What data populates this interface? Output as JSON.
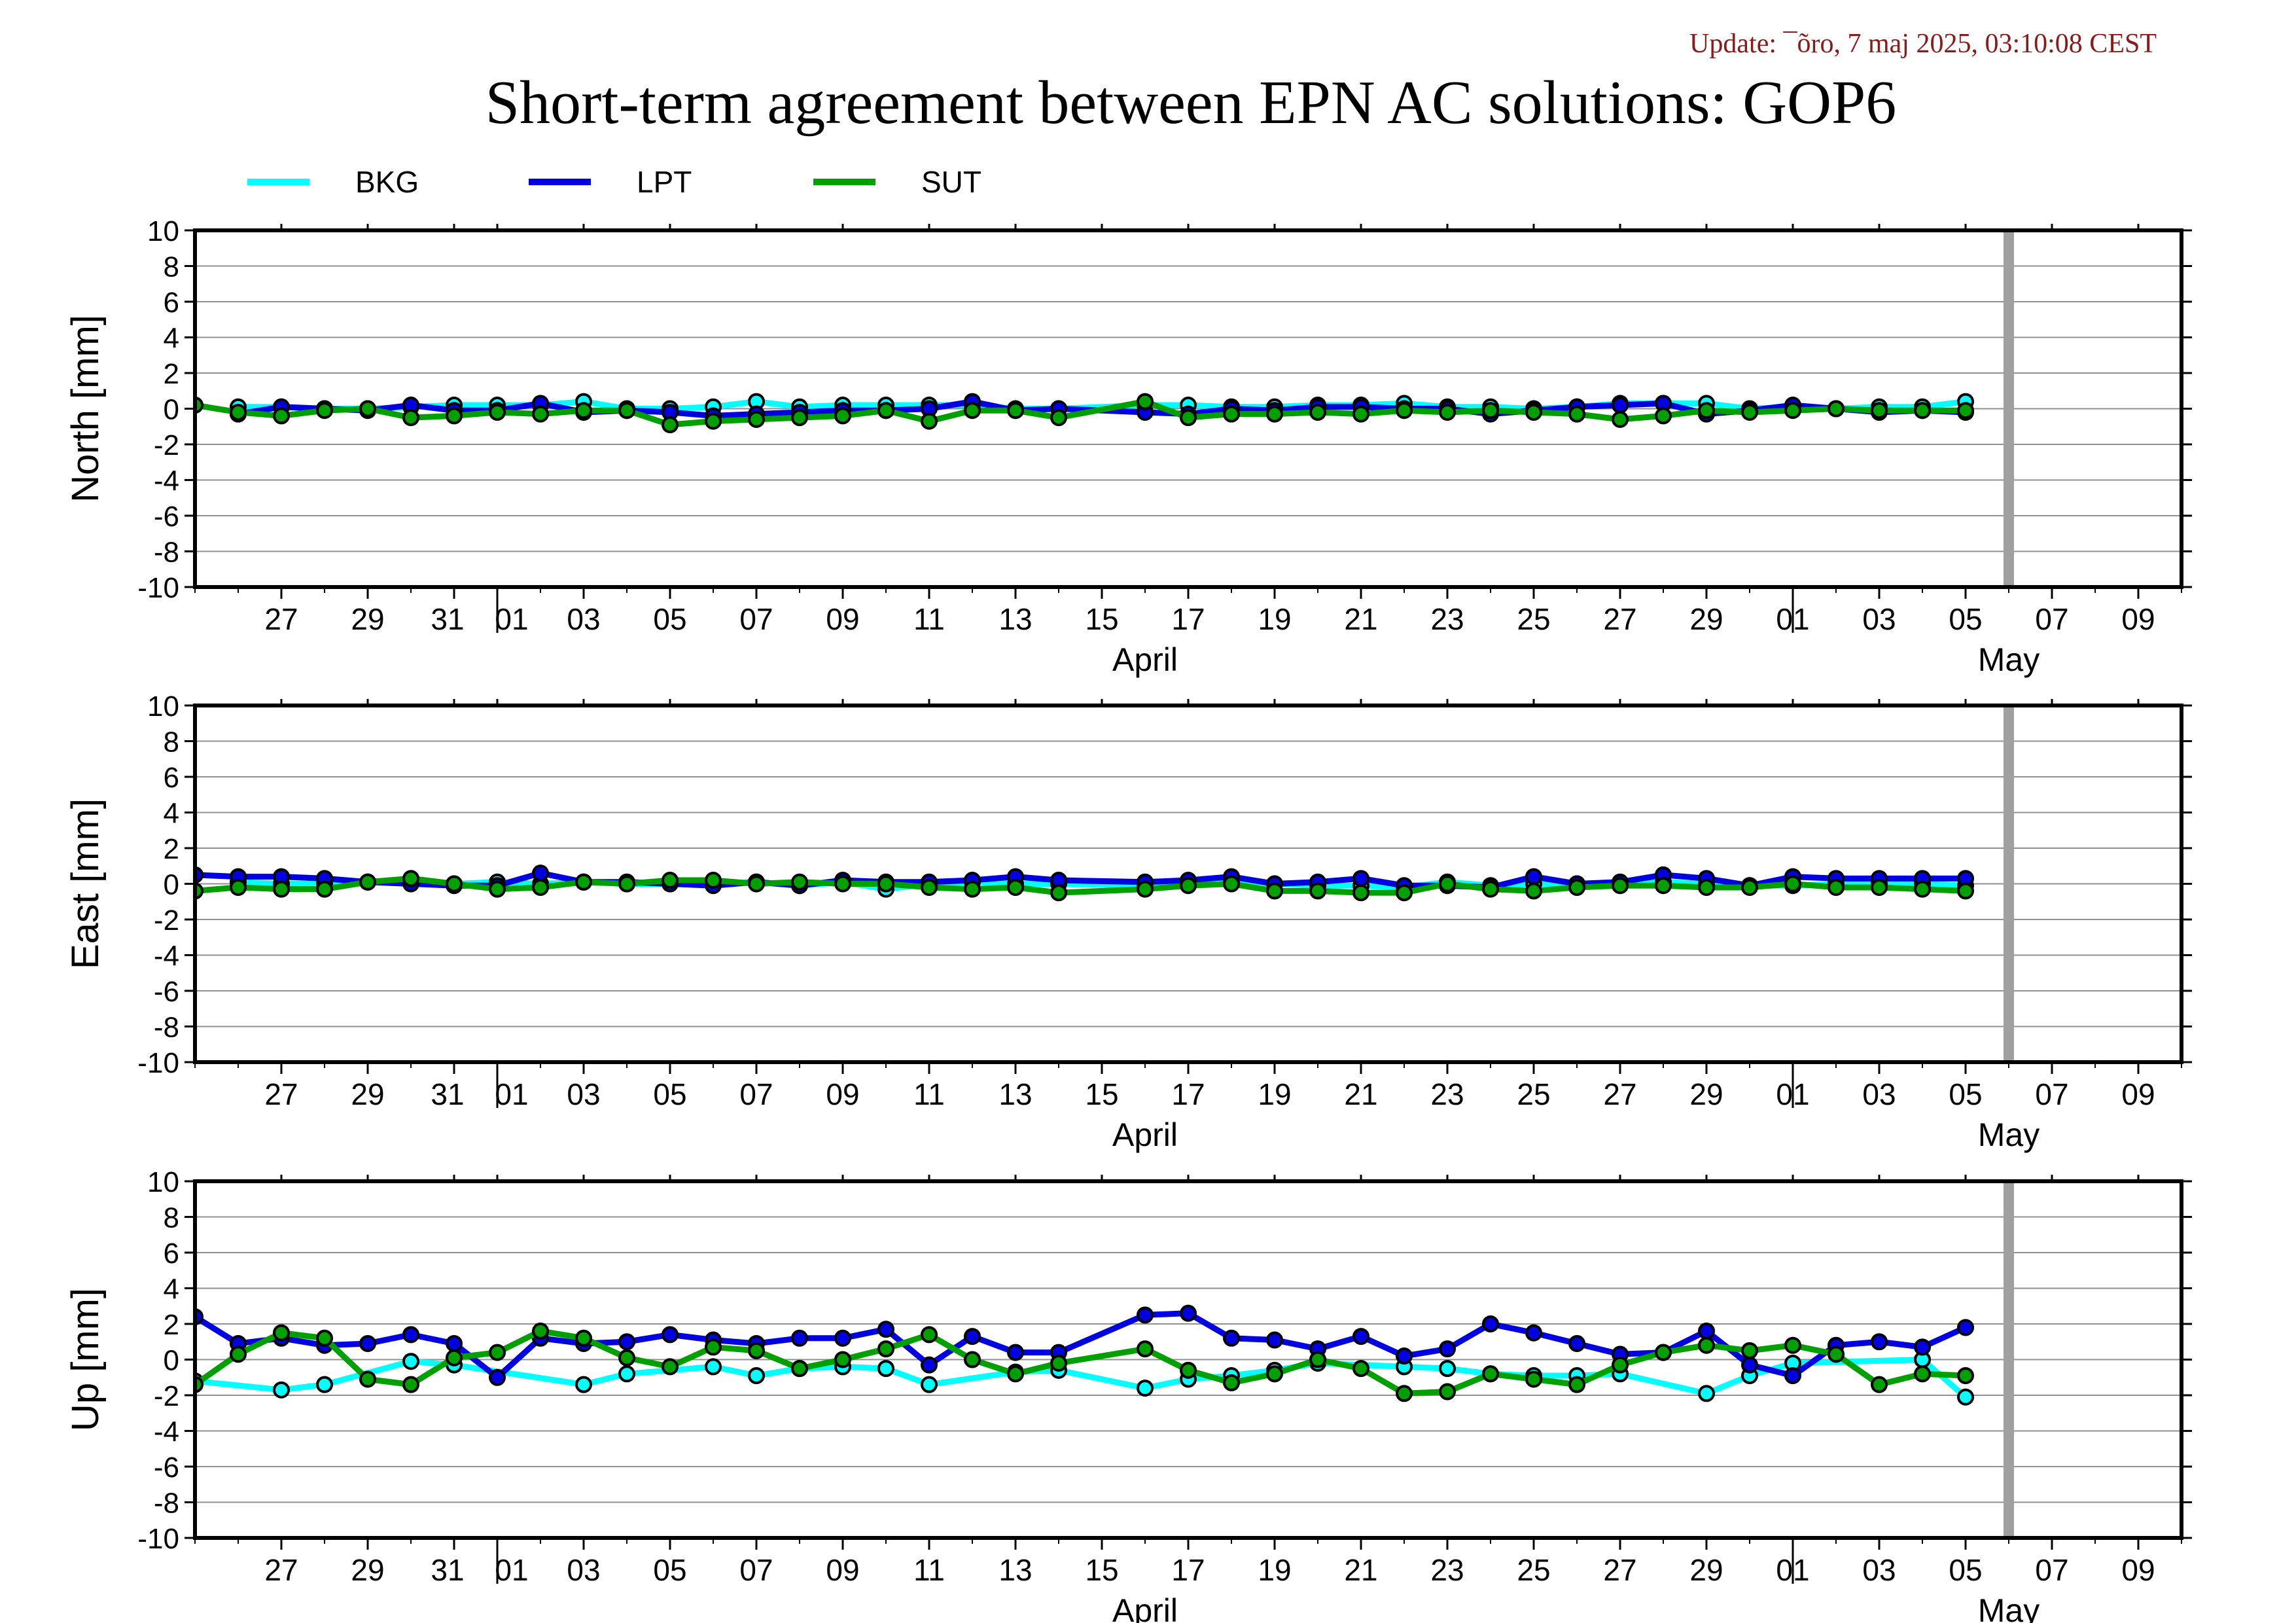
{
  "update_text": "Update: ¯õro, 7 maj 2025, 03:10:08 CEST",
  "title": "Short-term agreement between EPN AC solutions: GOP6",
  "colors": {
    "BKG": "#00ffff",
    "LPT": "#0000e0",
    "SUT": "#00a000",
    "update": "#8b1a1a",
    "end_marker": "#a0a0a0"
  },
  "chart_data": {
    "type": "line",
    "x_axis": {
      "start": "2025-03-25",
      "end": "2025-05-10",
      "tick_labels": [
        "27",
        "29",
        "31",
        "01",
        "03",
        "05",
        "07",
        "09",
        "11",
        "13",
        "15",
        "17",
        "19",
        "21",
        "23",
        "25",
        "27",
        "29",
        "01",
        "03",
        "05",
        "07",
        "09"
      ],
      "month_labels": [
        "April",
        "May"
      ]
    },
    "end_marker_date": "2025-05-06",
    "legend": [
      "BKG",
      "LPT",
      "SUT"
    ],
    "ylim": [
      -10,
      10
    ],
    "yticks": [
      10,
      8,
      6,
      4,
      2,
      0,
      -2,
      -4,
      -6,
      -8,
      -10
    ],
    "grid": true,
    "panels": [
      {
        "ylabel": "North [mm]",
        "series": [
          {
            "name": "BKG",
            "x": [
              "2025-03-26",
              "2025-03-27",
              "2025-03-28",
              "2025-03-29",
              "2025-03-30",
              "2025-03-31",
              "2025-04-01",
              "2025-04-02",
              "2025-04-03",
              "2025-04-04",
              "2025-04-05",
              "2025-04-06",
              "2025-04-07",
              "2025-04-08",
              "2025-04-09",
              "2025-04-10",
              "2025-04-11",
              "2025-04-12",
              "2025-04-13",
              "2025-04-14",
              "2025-04-16",
              "2025-04-17",
              "2025-04-18",
              "2025-04-19",
              "2025-04-20",
              "2025-04-21",
              "2025-04-22",
              "2025-04-23",
              "2025-04-24",
              "2025-04-25",
              "2025-04-26",
              "2025-04-27",
              "2025-04-28",
              "2025-04-29",
              "2025-04-30",
              "2025-05-01",
              "2025-05-02",
              "2025-05-03",
              "2025-05-04",
              "2025-05-05"
            ],
            "y": [
              0.1,
              0.1,
              0.0,
              0.0,
              0.1,
              0.2,
              0.2,
              0.2,
              0.4,
              0.0,
              0.0,
              0.1,
              0.4,
              0.1,
              0.2,
              0.2,
              0.2,
              0.2,
              0.0,
              0.0,
              0.2,
              0.2,
              0.1,
              0.1,
              0.2,
              0.2,
              0.3,
              0.1,
              0.1,
              0.0,
              0.1,
              0.3,
              0.3,
              0.3,
              0.0,
              0.1,
              0.0,
              0.1,
              0.1,
              0.4
            ]
          },
          {
            "name": "LPT",
            "x": [
              "2025-03-26",
              "2025-03-27",
              "2025-03-28",
              "2025-03-29",
              "2025-03-30",
              "2025-03-31",
              "2025-04-01",
              "2025-04-02",
              "2025-04-03",
              "2025-04-04",
              "2025-04-05",
              "2025-04-06",
              "2025-04-07",
              "2025-04-08",
              "2025-04-09",
              "2025-04-10",
              "2025-04-11",
              "2025-04-12",
              "2025-04-13",
              "2025-04-14",
              "2025-04-16",
              "2025-04-17",
              "2025-04-18",
              "2025-04-19",
              "2025-04-20",
              "2025-04-21",
              "2025-04-22",
              "2025-04-23",
              "2025-04-24",
              "2025-04-25",
              "2025-04-26",
              "2025-04-27",
              "2025-04-28",
              "2025-04-29",
              "2025-04-30",
              "2025-05-01",
              "2025-05-02",
              "2025-05-03",
              "2025-05-04",
              "2025-05-05"
            ],
            "y": [
              -0.3,
              0.1,
              0.0,
              -0.1,
              0.2,
              -0.1,
              -0.1,
              0.3,
              -0.2,
              -0.1,
              -0.2,
              -0.4,
              -0.3,
              -0.2,
              -0.1,
              -0.1,
              0.0,
              0.4,
              -0.1,
              0.0,
              -0.2,
              -0.3,
              0.0,
              -0.1,
              0.1,
              0.1,
              0.0,
              0.0,
              -0.3,
              -0.1,
              0.1,
              0.2,
              0.3,
              -0.3,
              -0.1,
              0.2,
              0.0,
              -0.2,
              -0.1,
              -0.2
            ]
          },
          {
            "name": "SUT",
            "x": [
              "2025-03-25",
              "2025-03-26",
              "2025-03-27",
              "2025-03-28",
              "2025-03-29",
              "2025-03-30",
              "2025-03-31",
              "2025-04-01",
              "2025-04-02",
              "2025-04-03",
              "2025-04-04",
              "2025-04-05",
              "2025-04-06",
              "2025-04-07",
              "2025-04-08",
              "2025-04-09",
              "2025-04-10",
              "2025-04-11",
              "2025-04-12",
              "2025-04-13",
              "2025-04-14",
              "2025-04-16",
              "2025-04-17",
              "2025-04-18",
              "2025-04-19",
              "2025-04-20",
              "2025-04-21",
              "2025-04-22",
              "2025-04-23",
              "2025-04-24",
              "2025-04-25",
              "2025-04-26",
              "2025-04-27",
              "2025-04-28",
              "2025-04-29",
              "2025-04-30",
              "2025-05-01",
              "2025-05-02",
              "2025-05-03",
              "2025-05-04",
              "2025-05-05"
            ],
            "y": [
              0.2,
              -0.2,
              -0.4,
              -0.1,
              0.0,
              -0.5,
              -0.4,
              -0.2,
              -0.3,
              -0.1,
              -0.1,
              -0.9,
              -0.7,
              -0.6,
              -0.5,
              -0.4,
              -0.1,
              -0.7,
              -0.1,
              -0.1,
              -0.5,
              0.4,
              -0.5,
              -0.3,
              -0.3,
              -0.2,
              -0.3,
              -0.1,
              -0.2,
              -0.1,
              -0.2,
              -0.3,
              -0.6,
              -0.4,
              -0.1,
              -0.2,
              -0.1,
              0.0,
              -0.1,
              -0.1,
              -0.1
            ]
          }
        ]
      },
      {
        "ylabel": "East [mm]",
        "series": [
          {
            "name": "BKG",
            "x": [
              "2025-03-26",
              "2025-03-27",
              "2025-03-28",
              "2025-03-29",
              "2025-03-30",
              "2025-03-31",
              "2025-04-01",
              "2025-04-02",
              "2025-04-03",
              "2025-04-04",
              "2025-04-05",
              "2025-04-06",
              "2025-04-07",
              "2025-04-08",
              "2025-04-09",
              "2025-04-10",
              "2025-04-11",
              "2025-04-12",
              "2025-04-13",
              "2025-04-14",
              "2025-04-16",
              "2025-04-17",
              "2025-04-18",
              "2025-04-19",
              "2025-04-20",
              "2025-04-21",
              "2025-04-22",
              "2025-04-23",
              "2025-04-24",
              "2025-04-25",
              "2025-04-26",
              "2025-04-27",
              "2025-04-28",
              "2025-04-29",
              "2025-04-30",
              "2025-05-01",
              "2025-05-02",
              "2025-05-03",
              "2025-05-04",
              "2025-05-05"
            ],
            "y": [
              0.1,
              0.0,
              0.0,
              0.1,
              0.2,
              0.0,
              0.1,
              0.0,
              0.1,
              0.0,
              0.0,
              0.0,
              0.1,
              -0.1,
              0.1,
              -0.3,
              0.0,
              0.1,
              0.0,
              0.0,
              -0.1,
              0.1,
              0.1,
              0.0,
              -0.1,
              -0.1,
              -0.2,
              0.1,
              -0.1,
              0.0,
              0.0,
              0.0,
              0.1,
              0.0,
              -0.1,
              -0.1,
              0.0,
              0.0,
              0.0,
              -0.1
            ]
          },
          {
            "name": "LPT",
            "x": [
              "2025-03-25",
              "2025-03-26",
              "2025-03-27",
              "2025-03-28",
              "2025-03-29",
              "2025-03-30",
              "2025-03-31",
              "2025-04-01",
              "2025-04-02",
              "2025-04-03",
              "2025-04-04",
              "2025-04-05",
              "2025-04-06",
              "2025-04-07",
              "2025-04-08",
              "2025-04-09",
              "2025-04-10",
              "2025-04-11",
              "2025-04-12",
              "2025-04-13",
              "2025-04-14",
              "2025-04-16",
              "2025-04-17",
              "2025-04-18",
              "2025-04-19",
              "2025-04-20",
              "2025-04-21",
              "2025-04-22",
              "2025-04-23",
              "2025-04-24",
              "2025-04-25",
              "2025-04-26",
              "2025-04-27",
              "2025-04-28",
              "2025-04-29",
              "2025-04-30",
              "2025-05-01",
              "2025-05-02",
              "2025-05-03",
              "2025-05-04",
              "2025-05-05"
            ],
            "y": [
              0.5,
              0.4,
              0.4,
              0.3,
              0.1,
              0.0,
              -0.1,
              -0.1,
              0.6,
              0.1,
              0.1,
              0.0,
              -0.1,
              0.1,
              -0.1,
              0.2,
              0.1,
              0.1,
              0.2,
              0.4,
              0.2,
              0.1,
              0.2,
              0.4,
              0.0,
              0.1,
              0.3,
              -0.1,
              -0.1,
              -0.2,
              0.4,
              0.0,
              0.1,
              0.5,
              0.3,
              -0.1,
              0.4,
              0.3,
              0.3,
              0.3,
              0.3
            ]
          },
          {
            "name": "SUT",
            "x": [
              "2025-03-25",
              "2025-03-26",
              "2025-03-27",
              "2025-03-28",
              "2025-03-29",
              "2025-03-30",
              "2025-03-31",
              "2025-04-01",
              "2025-04-02",
              "2025-04-03",
              "2025-04-04",
              "2025-04-05",
              "2025-04-06",
              "2025-04-07",
              "2025-04-08",
              "2025-04-09",
              "2025-04-10",
              "2025-04-11",
              "2025-04-12",
              "2025-04-13",
              "2025-04-14",
              "2025-04-16",
              "2025-04-17",
              "2025-04-18",
              "2025-04-19",
              "2025-04-20",
              "2025-04-21",
              "2025-04-22",
              "2025-04-23",
              "2025-04-24",
              "2025-04-25",
              "2025-04-26",
              "2025-04-27",
              "2025-04-28",
              "2025-04-29",
              "2025-04-30",
              "2025-05-01",
              "2025-05-02",
              "2025-05-03",
              "2025-05-04",
              "2025-05-05"
            ],
            "y": [
              -0.4,
              -0.2,
              -0.3,
              -0.3,
              0.1,
              0.3,
              0.0,
              -0.3,
              -0.2,
              0.1,
              0.0,
              0.2,
              0.2,
              0.0,
              0.1,
              0.0,
              0.0,
              -0.2,
              -0.3,
              -0.2,
              -0.5,
              -0.3,
              -0.1,
              0.0,
              -0.4,
              -0.4,
              -0.5,
              -0.5,
              0.0,
              -0.3,
              -0.4,
              -0.2,
              -0.1,
              -0.1,
              -0.2,
              -0.2,
              0.0,
              -0.2,
              -0.2,
              -0.3,
              -0.4
            ]
          }
        ]
      },
      {
        "ylabel": "Up [mm]",
        "series": [
          {
            "name": "BKG",
            "x": [
              "2025-03-25",
              "2025-03-27",
              "2025-03-28",
              "2025-03-30",
              "2025-03-31",
              "2025-04-03",
              "2025-04-04",
              "2025-04-06",
              "2025-04-07",
              "2025-04-08",
              "2025-04-09",
              "2025-04-10",
              "2025-04-11",
              "2025-04-13",
              "2025-04-14",
              "2025-04-16",
              "2025-04-17",
              "2025-04-18",
              "2025-04-19",
              "2025-04-20",
              "2025-04-22",
              "2025-04-23",
              "2025-04-24",
              "2025-04-25",
              "2025-04-26",
              "2025-04-27",
              "2025-04-29",
              "2025-04-30",
              "2025-05-01",
              "2025-05-04",
              "2025-05-05"
            ],
            "y": [
              -1.2,
              -1.7,
              -1.4,
              -0.1,
              -0.3,
              -1.4,
              -0.8,
              -0.4,
              -0.9,
              -0.5,
              -0.4,
              -0.5,
              -1.4,
              -0.7,
              -0.6,
              -1.6,
              -1.1,
              -0.9,
              -0.6,
              -0.2,
              -0.4,
              -0.5,
              -0.8,
              -0.9,
              -0.9,
              -0.8,
              -1.9,
              -0.9,
              -0.2,
              0.0,
              -2.1
            ]
          },
          {
            "name": "LPT",
            "x": [
              "2025-03-25",
              "2025-03-26",
              "2025-03-27",
              "2025-03-28",
              "2025-03-29",
              "2025-03-30",
              "2025-03-31",
              "2025-04-01",
              "2025-04-02",
              "2025-04-03",
              "2025-04-04",
              "2025-04-05",
              "2025-04-06",
              "2025-04-07",
              "2025-04-08",
              "2025-04-09",
              "2025-04-10",
              "2025-04-11",
              "2025-04-12",
              "2025-04-13",
              "2025-04-14",
              "2025-04-16",
              "2025-04-17",
              "2025-04-18",
              "2025-04-19",
              "2025-04-20",
              "2025-04-21",
              "2025-04-22",
              "2025-04-23",
              "2025-04-24",
              "2025-04-25",
              "2025-04-26",
              "2025-04-27",
              "2025-04-28",
              "2025-04-29",
              "2025-04-30",
              "2025-05-01",
              "2025-05-02",
              "2025-05-03",
              "2025-05-04",
              "2025-05-05"
            ],
            "y": [
              2.4,
              0.9,
              1.2,
              0.8,
              0.9,
              1.4,
              0.9,
              -1.0,
              1.2,
              0.9,
              1.0,
              1.4,
              1.1,
              0.9,
              1.2,
              1.2,
              1.7,
              -0.3,
              1.3,
              0.4,
              0.4,
              2.5,
              2.6,
              1.2,
              1.1,
              0.6,
              1.3,
              0.2,
              0.6,
              2.0,
              1.5,
              0.9,
              0.3,
              0.4,
              1.6,
              -0.3,
              -0.9,
              0.8,
              1.0,
              0.7,
              1.8
            ]
          },
          {
            "name": "SUT",
            "x": [
              "2025-03-25",
              "2025-03-26",
              "2025-03-27",
              "2025-03-28",
              "2025-03-29",
              "2025-03-30",
              "2025-03-31",
              "2025-04-01",
              "2025-04-02",
              "2025-04-03",
              "2025-04-04",
              "2025-04-05",
              "2025-04-06",
              "2025-04-07",
              "2025-04-08",
              "2025-04-09",
              "2025-04-10",
              "2025-04-11",
              "2025-04-12",
              "2025-04-13",
              "2025-04-14",
              "2025-04-16",
              "2025-04-17",
              "2025-04-18",
              "2025-04-19",
              "2025-04-20",
              "2025-04-21",
              "2025-04-22",
              "2025-04-23",
              "2025-04-24",
              "2025-04-25",
              "2025-04-26",
              "2025-04-27",
              "2025-04-28",
              "2025-04-29",
              "2025-04-30",
              "2025-05-01",
              "2025-05-02",
              "2025-05-03",
              "2025-05-04",
              "2025-05-05"
            ],
            "y": [
              -1.4,
              0.3,
              1.5,
              1.2,
              -1.1,
              -1.4,
              0.1,
              0.4,
              1.6,
              1.2,
              0.1,
              -0.4,
              0.7,
              0.5,
              -0.5,
              0.0,
              0.6,
              1.4,
              0.0,
              -0.8,
              -0.2,
              0.6,
              -0.6,
              -1.3,
              -0.8,
              0.0,
              -0.5,
              -1.9,
              -1.8,
              -0.8,
              -1.1,
              -1.4,
              -0.3,
              0.4,
              0.8,
              0.5,
              0.8,
              0.3,
              -1.4,
              -0.8,
              -0.9
            ]
          }
        ]
      }
    ]
  }
}
